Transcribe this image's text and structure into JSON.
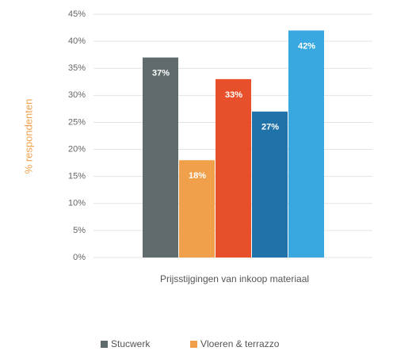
{
  "chart_data": {
    "type": "bar",
    "categories": [
      "Prijsstijgingen van inkoop materiaal"
    ],
    "y_label": "% respondenten",
    "ylim": [
      0,
      45
    ],
    "yticks": [
      {
        "value": 0,
        "label": "0%"
      },
      {
        "value": 5,
        "label": "5%"
      },
      {
        "value": 10,
        "label": "10%"
      },
      {
        "value": 15,
        "label": "15%"
      },
      {
        "value": 20,
        "label": "20%"
      },
      {
        "value": 25,
        "label": "25%"
      },
      {
        "value": 30,
        "label": "30%"
      },
      {
        "value": 35,
        "label": "35%"
      },
      {
        "value": 40,
        "label": "40%"
      },
      {
        "value": 45,
        "label": "45%"
      }
    ],
    "grid": true,
    "series": [
      {
        "name": "Stucwerk",
        "color": "#5f6b6d",
        "values": [
          37
        ],
        "value_labels": [
          "37%"
        ]
      },
      {
        "name": "Vloeren & terrazzo",
        "color": "#f0a04b",
        "values": [
          18
        ],
        "value_labels": [
          "18%"
        ]
      },
      {
        "color": "#e8502b",
        "values": [
          33
        ],
        "value_labels": [
          "33%"
        ]
      },
      {
        "color": "#1f73a8",
        "values": [
          27
        ],
        "value_labels": [
          "27%"
        ]
      },
      {
        "color": "#3aa8e0",
        "values": [
          42
        ],
        "value_labels": [
          "42%"
        ]
      }
    ]
  }
}
